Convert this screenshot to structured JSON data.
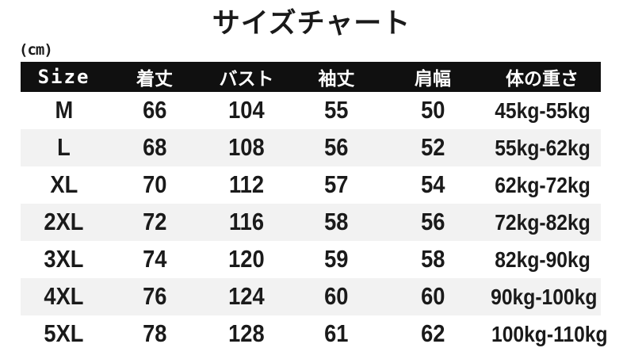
{
  "title": "サイズチャート",
  "unit_label": "(cm)",
  "chart_data": {
    "type": "table",
    "title": "サイズチャート",
    "unit": "cm",
    "columns": [
      "Size",
      "着丈",
      "バスト",
      "袖丈",
      "肩幅",
      "体の重さ"
    ],
    "rows": [
      [
        "M",
        "66",
        "104",
        "55",
        "50",
        "45kg-55kg"
      ],
      [
        "L",
        "68",
        "108",
        "56",
        "52",
        "55kg-62kg"
      ],
      [
        "XL",
        "70",
        "112",
        "57",
        "54",
        "62kg-72kg"
      ],
      [
        "2XL",
        "72",
        "116",
        "58",
        "56",
        "72kg-82kg"
      ],
      [
        "3XL",
        "74",
        "120",
        "59",
        "58",
        "82kg-90kg"
      ],
      [
        "4XL",
        "76",
        "124",
        "60",
        "60",
        "90kg-100kg"
      ],
      [
        "5XL",
        "78",
        "128",
        "61",
        "62",
        "100kg-110kg"
      ]
    ],
    "shaded_row_indices": [
      1,
      3,
      5
    ]
  },
  "colors": {
    "header_bg": "#101010",
    "header_text": "#ffffff",
    "row_shade": "#f2f2f2",
    "text": "#1a1a1a",
    "background": "#ffffff"
  }
}
